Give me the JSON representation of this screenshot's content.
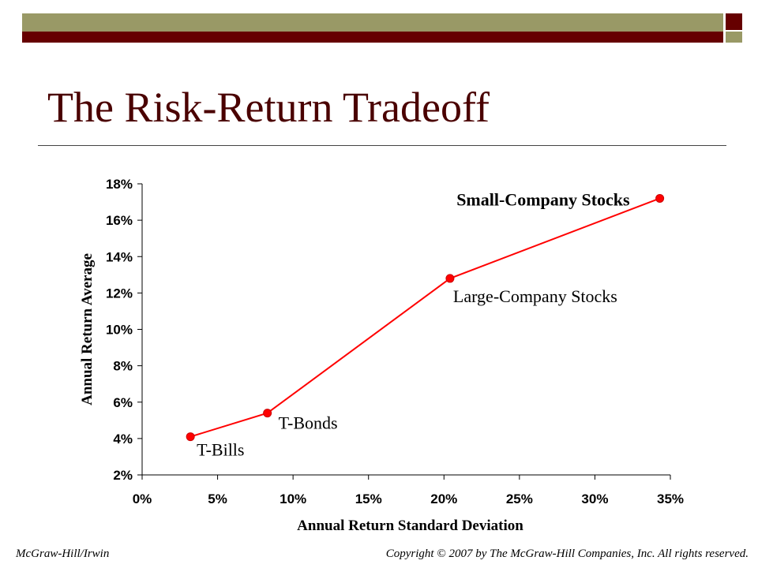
{
  "slide": {
    "title": "The Risk-Return Tradeoff",
    "footer_left": "McGraw-Hill/Irwin",
    "footer_right": "Copyright © 2007 by The McGraw-Hill Companies, Inc. All rights reserved."
  },
  "theme": {
    "olive": "#999966",
    "maroon": "#660000",
    "series_color": "#ff0000"
  },
  "chart_data": {
    "type": "line",
    "xlabel": "Annual Return Standard Deviation",
    "ylabel": "Annual Return Average",
    "xlim": [
      0,
      35
    ],
    "ylim": [
      2,
      18
    ],
    "x_ticks": [
      0,
      5,
      10,
      15,
      20,
      25,
      30,
      35
    ],
    "x_tick_labels": [
      "0%",
      "5%",
      "10%",
      "15%",
      "20%",
      "25%",
      "30%",
      "35%"
    ],
    "y_ticks": [
      2,
      4,
      6,
      8,
      10,
      12,
      14,
      16,
      18
    ],
    "y_tick_labels": [
      "2%",
      "4%",
      "6%",
      "8%",
      "10%",
      "12%",
      "14%",
      "16%",
      "18%"
    ],
    "grid": false,
    "legend": "none",
    "points": [
      {
        "label": "T-Bills",
        "x": 3.2,
        "y": 4.1
      },
      {
        "label": "T-Bonds",
        "x": 8.3,
        "y": 5.4
      },
      {
        "label": "Large-Company Stocks",
        "x": 20.4,
        "y": 12.8
      },
      {
        "label": "Small-Company Stocks",
        "x": 34.3,
        "y": 17.2
      }
    ]
  }
}
